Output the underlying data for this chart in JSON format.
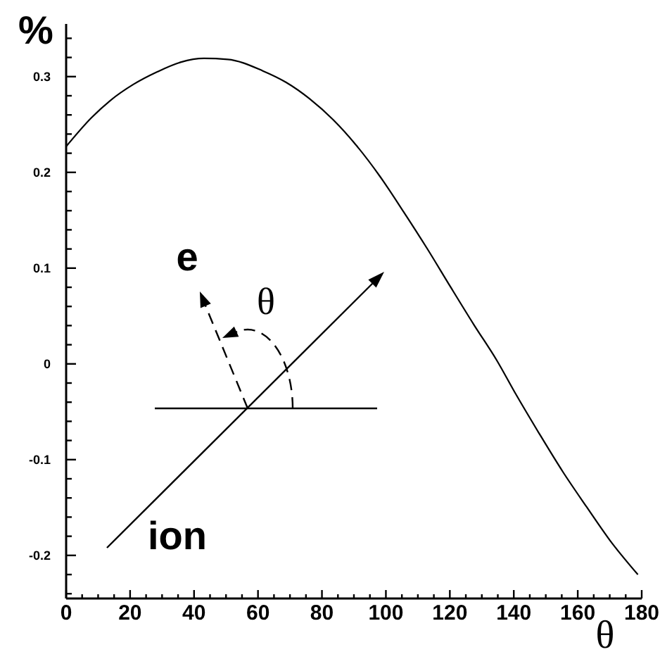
{
  "chart_data": {
    "type": "line",
    "ylabel": "%",
    "xlabel": "θ",
    "annotations": [
      "e",
      "θ",
      "ion"
    ],
    "x": [
      0,
      7.9,
      13.8,
      21.1,
      28.5,
      35.8,
      43.1,
      50.5,
      61.5,
      68.8,
      76.1,
      83.5,
      90.8,
      98.1,
      105.5,
      112.8,
      120.1,
      127.5,
      134.8,
      140.7,
      148,
      155.4,
      162.7,
      170,
      178.8
    ],
    "series": [
      {
        "color": "#000000",
        "values": [
          0.227,
          0.257,
          0.275,
          0.292,
          0.305,
          0.315,
          0.319,
          0.318,
          0.306,
          0.294,
          0.277,
          0.255,
          0.228,
          0.196,
          0.159,
          0.121,
          0.081,
          0.041,
          0.003,
          -0.032,
          -0.073,
          -0.113,
          -0.149,
          -0.184,
          -0.22
        ]
      }
    ],
    "xlim": [
      0,
      180
    ],
    "ylim": [
      -0.245,
      0.355
    ],
    "xticks": [
      0,
      {
        "value": 5,
        "label": null
      },
      {
        "value": 10,
        "label": null
      },
      {
        "value": 15,
        "label": null
      },
      20,
      {
        "value": 25,
        "label": null
      },
      {
        "value": 30,
        "label": null
      },
      {
        "value": 35,
        "label": null
      },
      40,
      {
        "value": 45,
        "label": null
      },
      {
        "value": 50,
        "label": null
      },
      {
        "value": 55,
        "label": null
      },
      60,
      {
        "value": 65,
        "label": null
      },
      {
        "value": 70,
        "label": null
      },
      {
        "value": 75,
        "label": null
      },
      80,
      {
        "value": 85,
        "label": null
      },
      {
        "value": 90,
        "label": null
      },
      {
        "value": 95,
        "label": null
      },
      100,
      {
        "value": 105,
        "label": null
      },
      {
        "value": 110,
        "label": null
      },
      {
        "value": 115,
        "label": null
      },
      120,
      {
        "value": 125,
        "label": null
      },
      {
        "value": 130,
        "label": null
      },
      {
        "value": 135,
        "label": null
      },
      140,
      {
        "value": 145,
        "label": null
      },
      {
        "value": 150,
        "label": null
      },
      {
        "value": 155,
        "label": null
      },
      160,
      {
        "value": 165,
        "label": null
      },
      {
        "value": 170,
        "label": null
      },
      {
        "value": 175,
        "label": null
      },
      180
    ],
    "yticks": [
      {
        "value": -0.24,
        "label": null
      },
      {
        "value": -0.22,
        "label": null
      },
      -0.2,
      {
        "value": -0.18,
        "label": null
      },
      {
        "value": -0.16,
        "label": null
      },
      {
        "value": -0.14,
        "label": null
      },
      {
        "value": -0.12,
        "label": null
      },
      -0.1,
      {
        "value": -0.08,
        "label": null
      },
      {
        "value": -0.06,
        "label": null
      },
      {
        "value": -0.04,
        "label": null
      },
      {
        "value": -0.02,
        "label": null
      },
      0,
      {
        "value": 0.02,
        "label": null
      },
      {
        "value": 0.04,
        "label": null
      },
      {
        "value": 0.06,
        "label": null
      },
      {
        "value": 0.08,
        "label": null
      },
      0.1,
      {
        "value": 0.12,
        "label": null
      },
      {
        "value": 0.14,
        "label": null
      },
      {
        "value": 0.16,
        "label": null
      },
      {
        "value": 0.18,
        "label": null
      },
      0.2,
      {
        "value": 0.22,
        "label": null
      },
      {
        "value": 0.24,
        "label": null
      },
      {
        "value": 0.26,
        "label": null
      },
      {
        "value": 0.28,
        "label": null
      },
      0.3,
      {
        "value": 0.32,
        "label": null
      },
      {
        "value": 0.34,
        "label": null
      }
    ],
    "line_style": "solid"
  }
}
